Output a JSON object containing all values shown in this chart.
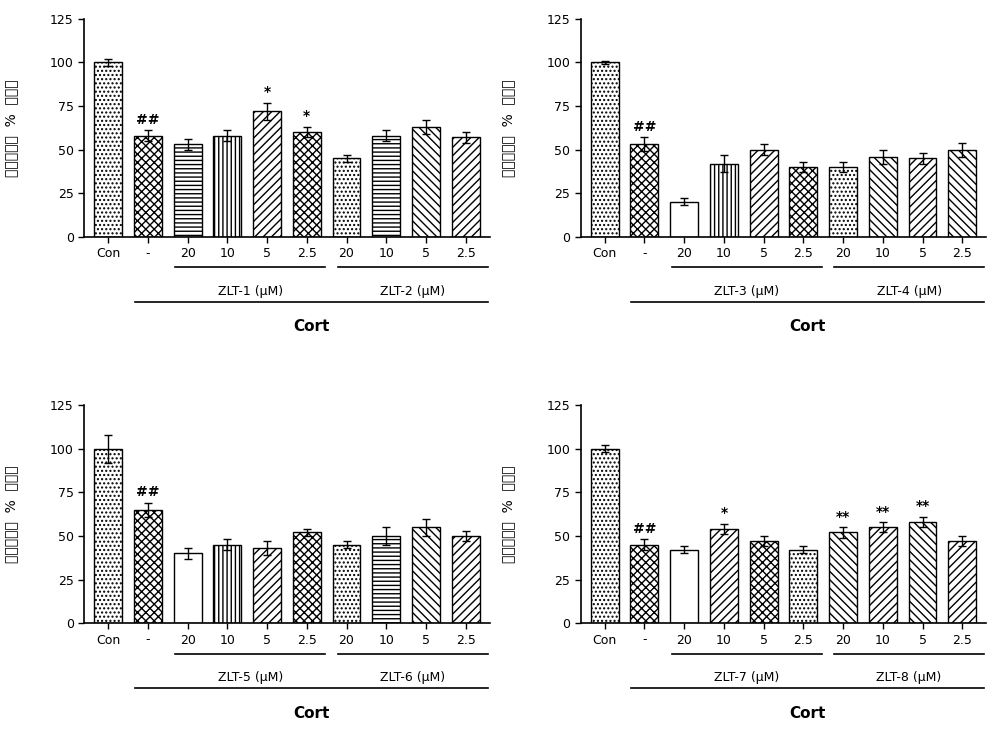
{
  "panels": [
    {
      "title_drug1": "ZLT-1 (μM)",
      "title_drug2": "ZLT-2 (μM)",
      "bars": [
        100,
        58,
        53,
        58,
        72,
        60,
        45,
        58,
        63,
        57
      ],
      "errors": [
        2,
        3,
        3,
        3,
        5,
        3,
        2,
        3,
        4,
        3
      ],
      "annotations": [
        "",
        "##",
        "",
        "",
        "*",
        "*",
        "",
        "",
        "",
        ""
      ],
      "xlabels": [
        "Con",
        "-",
        "20",
        "10",
        "5",
        "2.5",
        "20",
        "10",
        "5",
        "2.5"
      ]
    },
    {
      "title_drug1": "ZLT-3 (μM)",
      "title_drug2": "ZLT-4 (μM)",
      "bars": [
        100,
        53,
        20,
        42,
        50,
        40,
        40,
        46,
        45,
        50
      ],
      "errors": [
        1,
        4,
        2,
        5,
        3,
        3,
        3,
        4,
        3,
        4
      ],
      "annotations": [
        "",
        "##",
        "",
        "",
        "",
        "",
        "",
        "",
        "",
        ""
      ],
      "xlabels": [
        "Con",
        "-",
        "20",
        "10",
        "5",
        "2.5",
        "20",
        "10",
        "5",
        "2.5"
      ]
    },
    {
      "title_drug1": "ZLT-5 (μM)",
      "title_drug2": "ZLT-6 (μM)",
      "bars": [
        100,
        65,
        40,
        45,
        43,
        52,
        45,
        50,
        55,
        50
      ],
      "errors": [
        8,
        4,
        3,
        3,
        4,
        2,
        2,
        5,
        5,
        3
      ],
      "annotations": [
        "",
        "##",
        "",
        "",
        "",
        "",
        "",
        "",
        "",
        ""
      ],
      "xlabels": [
        "Con",
        "-",
        "20",
        "10",
        "5",
        "2.5",
        "20",
        "10",
        "5",
        "2.5"
      ]
    },
    {
      "title_drug1": "ZLT-7 (μM)",
      "title_drug2": "ZLT-8 (μM)",
      "bars": [
        100,
        45,
        42,
        54,
        47,
        42,
        52,
        55,
        58,
        47
      ],
      "errors": [
        2,
        3,
        2,
        3,
        3,
        2,
        3,
        3,
        3,
        3
      ],
      "annotations": [
        "",
        "##",
        "",
        "*",
        "",
        "",
        "**",
        "**",
        "**",
        ""
      ],
      "xlabels": [
        "Con",
        "-",
        "20",
        "10",
        "5",
        "2.5",
        "20",
        "10",
        "5",
        "2.5"
      ]
    }
  ],
  "ylabel_chars": [
    "细",
    "胞",
    "生",
    "存",
    "率",
    " ",
    "%",
    " ",
    "对",
    "照",
    "组"
  ],
  "xlabel_cort": "Cort",
  "ylim": [
    0,
    125
  ],
  "yticks": [
    0,
    25,
    50,
    75,
    100,
    125
  ],
  "fontsize_tick": 9,
  "fontsize_label": 10,
  "fontsize_annot": 10,
  "fontsize_cort": 11
}
